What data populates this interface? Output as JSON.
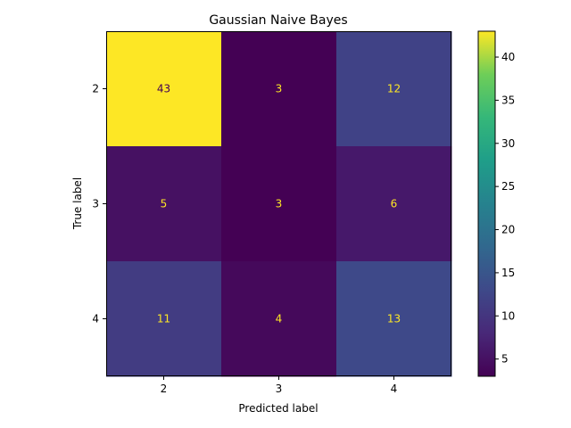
{
  "chart_data": {
    "type": "heatmap",
    "title": "Gaussian Naive Bayes",
    "xlabel": "Predicted label",
    "ylabel": "True label",
    "x_categories": [
      "2",
      "3",
      "4"
    ],
    "y_categories": [
      "2",
      "3",
      "4"
    ],
    "values": [
      [
        43,
        3,
        12
      ],
      [
        5,
        3,
        6
      ],
      [
        11,
        4,
        13
      ]
    ],
    "colormap": "viridis",
    "color_range": [
      3,
      43
    ],
    "colorbar_ticks": [
      5,
      10,
      15,
      20,
      25,
      30,
      35,
      40
    ],
    "grid": false,
    "legend": "colorbar-right"
  }
}
